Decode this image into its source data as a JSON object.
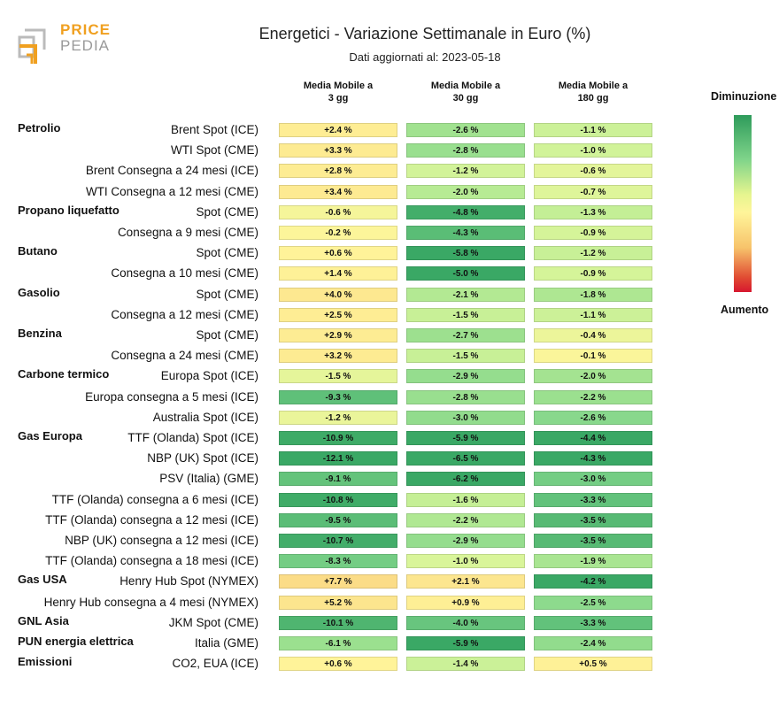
{
  "logo": {
    "word1": "PRICE",
    "word2": "PEDIA"
  },
  "title": "Energetici - Variazione Settimanale in Euro (%)",
  "subtitle": "Dati aggiornati al: 2023-05-18",
  "legend": {
    "top": "Diminuzione",
    "bottom": "Aumento"
  },
  "colors": {
    "strong_green": "#2e9b5b",
    "green": "#7fd48a",
    "light_green": "#d9f59a",
    "yellow": "#fff59a",
    "orange": "#f7c36b",
    "red": "#d7172f"
  },
  "chart_data": {
    "type": "table",
    "columns": [
      "Media Mobile a\n3 gg",
      "Media Mobile a\n30 gg",
      "Media Mobile a\n180 gg"
    ],
    "rows": [
      {
        "group": "Petrolio",
        "label": "Brent Spot (ICE)",
        "values": [
          "+2.4 %",
          "-2.6 %",
          "-1.1 %"
        ]
      },
      {
        "group": "",
        "label": "WTI Spot (CME)",
        "values": [
          "+3.3 %",
          "-2.8 %",
          "-1.0 %"
        ]
      },
      {
        "group": "",
        "label": "Brent Consegna a 24 mesi (ICE)",
        "values": [
          "+2.8 %",
          "-1.2 %",
          "-0.6 %"
        ]
      },
      {
        "group": "",
        "label": "WTI Consegna a 12 mesi (CME)",
        "values": [
          "+3.4 %",
          "-2.0 %",
          "-0.7 %"
        ]
      },
      {
        "group": "Propano liquefatto",
        "label": "Spot (CME)",
        "values": [
          "-0.6 %",
          "-4.8 %",
          "-1.3 %"
        ]
      },
      {
        "group": "",
        "label": "Consegna a 9 mesi (CME)",
        "values": [
          "-0.2 %",
          "-4.3 %",
          "-0.9 %"
        ]
      },
      {
        "group": "Butano",
        "label": "Spot (CME)",
        "values": [
          "+0.6 %",
          "-5.8 %",
          "-1.2 %"
        ]
      },
      {
        "group": "",
        "label": "Consegna a 10 mesi (CME)",
        "values": [
          "+1.4 %",
          "-5.0 %",
          "-0.9 %"
        ]
      },
      {
        "group": "Gasolio",
        "label": "Spot (CME)",
        "values": [
          "+4.0 %",
          "-2.1 %",
          "-1.8 %"
        ]
      },
      {
        "group": "",
        "label": "Consegna a 12 mesi (CME)",
        "values": [
          "+2.5 %",
          "-1.5 %",
          "-1.1 %"
        ]
      },
      {
        "group": "Benzina",
        "label": "Spot (CME)",
        "values": [
          "+2.9 %",
          "-2.7 %",
          "-0.4 %"
        ]
      },
      {
        "group": "",
        "label": "Consegna a 24 mesi (CME)",
        "values": [
          "+3.2 %",
          "-1.5 %",
          "-0.1 %"
        ]
      },
      {
        "group": "Carbone termico",
        "label": "Europa Spot (ICE)",
        "values": [
          "-1.5 %",
          "-2.9 %",
          "-2.0 %"
        ]
      },
      {
        "group": "",
        "label": "Europa consegna a 5 mesi (ICE)",
        "values": [
          "-9.3 %",
          "-2.8 %",
          "-2.2 %"
        ]
      },
      {
        "group": "",
        "label": "Australia Spot (ICE)",
        "values": [
          "-1.2 %",
          "-3.0 %",
          "-2.6 %"
        ]
      },
      {
        "group": "Gas Europa",
        "label": "TTF (Olanda) Spot (ICE)",
        "values": [
          "-10.9 %",
          "-5.9 %",
          "-4.4 %"
        ]
      },
      {
        "group": "",
        "label": "NBP (UK) Spot (ICE)",
        "values": [
          "-12.1 %",
          "-6.5 %",
          "-4.3 %"
        ]
      },
      {
        "group": "",
        "label": "PSV (Italia) (GME)",
        "values": [
          "-9.1 %",
          "-6.2 %",
          "-3.0 %"
        ]
      },
      {
        "group": "",
        "label": "TTF (Olanda) consegna a 6 mesi (ICE)",
        "values": [
          "-10.8 %",
          "-1.6 %",
          "-3.3 %"
        ]
      },
      {
        "group": "",
        "label": "TTF (Olanda) consegna a 12 mesi (ICE)",
        "values": [
          "-9.5 %",
          "-2.2 %",
          "-3.5 %"
        ]
      },
      {
        "group": "",
        "label": "NBP (UK) consegna a 12 mesi (ICE)",
        "values": [
          "-10.7 %",
          "-2.9 %",
          "-3.5 %"
        ]
      },
      {
        "group": "",
        "label": "TTF (Olanda) consegna a 18 mesi (ICE)",
        "values": [
          "-8.3 %",
          "-1.0 %",
          "-1.9 %"
        ]
      },
      {
        "group": "Gas USA",
        "label": "Henry Hub Spot (NYMEX)",
        "values": [
          "+7.7 %",
          "+2.1 %",
          "-4.2 %"
        ]
      },
      {
        "group": "",
        "label": "Henry Hub consegna a 4 mesi (NYMEX)",
        "values": [
          "+5.2 %",
          "+0.9 %",
          "-2.5 %"
        ]
      },
      {
        "group": "GNL Asia",
        "label": "JKM Spot (CME)",
        "values": [
          "-10.1 %",
          "-4.0 %",
          "-3.3 %"
        ]
      },
      {
        "group": "PUN energia elettrica",
        "label": "Italia (GME)",
        "values": [
          "-6.1 %",
          "-5.9 %",
          "-2.4 %"
        ]
      },
      {
        "group": "Emissioni",
        "label": "CO2, EUA (ICE)",
        "values": [
          "+0.6 %",
          "-1.4 %",
          "+0.5 %"
        ]
      }
    ]
  }
}
